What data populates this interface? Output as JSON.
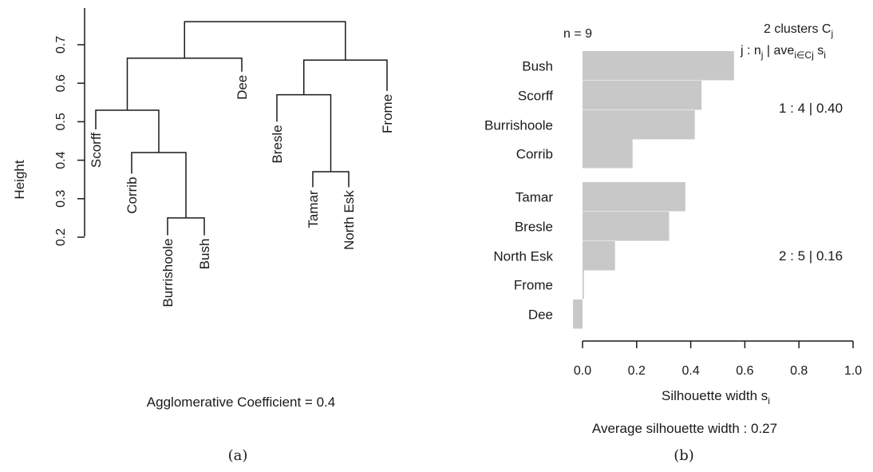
{
  "panels": {
    "a_label": "(a)",
    "b_label": "(b)"
  },
  "chart_data": [
    {
      "type": "dendrogram",
      "ylabel": "Height",
      "ylim": [
        0.2,
        0.75
      ],
      "yticks": [
        0.2,
        0.3,
        0.4,
        0.5,
        0.6,
        0.7
      ],
      "ytick_labels": [
        "0.2",
        "0.3",
        "0.4",
        "0.5",
        "0.6",
        "0.7"
      ],
      "leaf_order": [
        "Scorff",
        "Corrib",
        "Burrishoole",
        "Bush",
        "Dee",
        "Bresle",
        "Tamar",
        "North Esk",
        "Frome"
      ],
      "merges": [
        {
          "left": "Burrishoole",
          "right": "Bush",
          "height": 0.25
        },
        {
          "left": "Tamar",
          "right": "North Esk",
          "height": 0.37
        },
        {
          "left": "Corrib",
          "right": "Burrishoole+Bush",
          "height": 0.42
        },
        {
          "left": "Scorff",
          "right": "Corrib+Burrishoole+Bush",
          "height": 0.53
        },
        {
          "left": "Bresle",
          "right": "Tamar+North Esk",
          "height": 0.57
        },
        {
          "left": "Bresle+Tamar+North Esk",
          "right": "Frome",
          "height": 0.66
        },
        {
          "left": "Scorff+Corrib+Burrishoole+Bush",
          "right": "Dee",
          "height": 0.665
        },
        {
          "left": "Scorff..Dee",
          "right": "Bresle..Frome",
          "height": 0.76
        }
      ],
      "leaf_heights": {
        "Scorff": 0.48,
        "Corrib": 0.365,
        "Burrishoole": 0.205,
        "Bush": 0.205,
        "Dee": 0.63,
        "Bresle": 0.5,
        "Tamar": 0.33,
        "North Esk": 0.33,
        "Frome": 0.58
      },
      "caption": "Agglomerative Coefficient =  0.4"
    },
    {
      "type": "bar",
      "orientation": "horizontal",
      "header_left": "n = 9",
      "header_right_line1": "2  clusters  C",
      "header_right_line1_sub": "j",
      "header_right_line2": {
        "t1": "j :  n",
        "s1": "j",
        "t2": " | ave",
        "s2": "i∈Cj",
        "t3": "  s",
        "s3": "i"
      },
      "categories": [
        "Bush",
        "Scorff",
        "Burrishoole",
        "Corrib",
        "Tamar",
        "Bresle",
        "North Esk",
        "Frome",
        "Dee"
      ],
      "values": [
        0.56,
        0.44,
        0.415,
        0.185,
        0.38,
        0.32,
        0.12,
        0.005,
        -0.035
      ],
      "cluster": [
        1,
        1,
        1,
        1,
        2,
        2,
        2,
        2,
        2
      ],
      "clusters": [
        {
          "text": "1 :   4  |  0.40"
        },
        {
          "text": "2 :   5  |  0.16"
        }
      ],
      "xlim": [
        0,
        1.0
      ],
      "xticks": [
        0.0,
        0.2,
        0.4,
        0.6,
        0.8,
        1.0
      ],
      "xtick_labels": [
        "0.0",
        "0.2",
        "0.4",
        "0.6",
        "0.8",
        "1.0"
      ],
      "xlabel": "Silhouette width s",
      "xlabel_sub": "i",
      "caption": "Average silhouette width :  0.27",
      "bar_color": "#c8c8c8"
    }
  ]
}
